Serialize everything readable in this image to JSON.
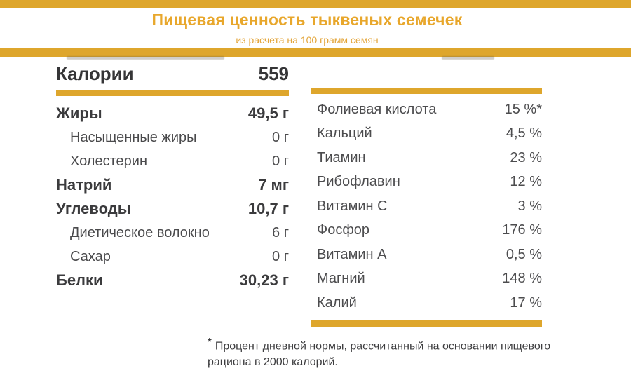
{
  "header": {
    "title": "Пищевая ценность тыквеных семечек",
    "subtitle": "из расчета на 100 грамм семян"
  },
  "calories": {
    "label": "Калории",
    "value": "559"
  },
  "left_rows": [
    {
      "label": "Жиры",
      "value": "49,5 г",
      "style": "bold"
    },
    {
      "label": "Насыщенные жиры",
      "value": "0 г",
      "style": "indent"
    },
    {
      "label": "Холестерин",
      "value": "0 г",
      "style": "indent"
    },
    {
      "label": "Натрий",
      "value": "7 мг",
      "style": "bold"
    },
    {
      "label": "Углеводы",
      "value": "10,7 г",
      "style": "bold"
    },
    {
      "label": "Диетическое волокно",
      "value": "6 г",
      "style": "indent"
    },
    {
      "label": "Сахар",
      "value": "0 г",
      "style": "indent"
    },
    {
      "label": "Белки",
      "value": "30,23 г",
      "style": "bold"
    }
  ],
  "right_rows": [
    {
      "label": "Фолиевая кислота",
      "value": "15 %*"
    },
    {
      "label": "Кальций",
      "value": "4,5 %"
    },
    {
      "label": "Тиамин",
      "value": "23 %"
    },
    {
      "label": "Рибофлавин",
      "value": "12 %"
    },
    {
      "label": "Витамин C",
      "value": "3 %"
    },
    {
      "label": "Фосфор",
      "value": "176 %"
    },
    {
      "label": "Витамин A",
      "value": "0,5 %"
    },
    {
      "label": "Магний",
      "value": "148 %"
    },
    {
      "label": "Калий",
      "value": "17 %"
    }
  ],
  "footnote": {
    "marker": "*",
    "text": "Процент дневной нормы, рассчитанный на основании пищевого рациона в 2000 калорий."
  },
  "colors": {
    "accent_gold": "#DEA62C",
    "title_gold": "#E8A72C",
    "text_dark": "#3B3B3D",
    "text_regular": "#4A4A4C"
  }
}
